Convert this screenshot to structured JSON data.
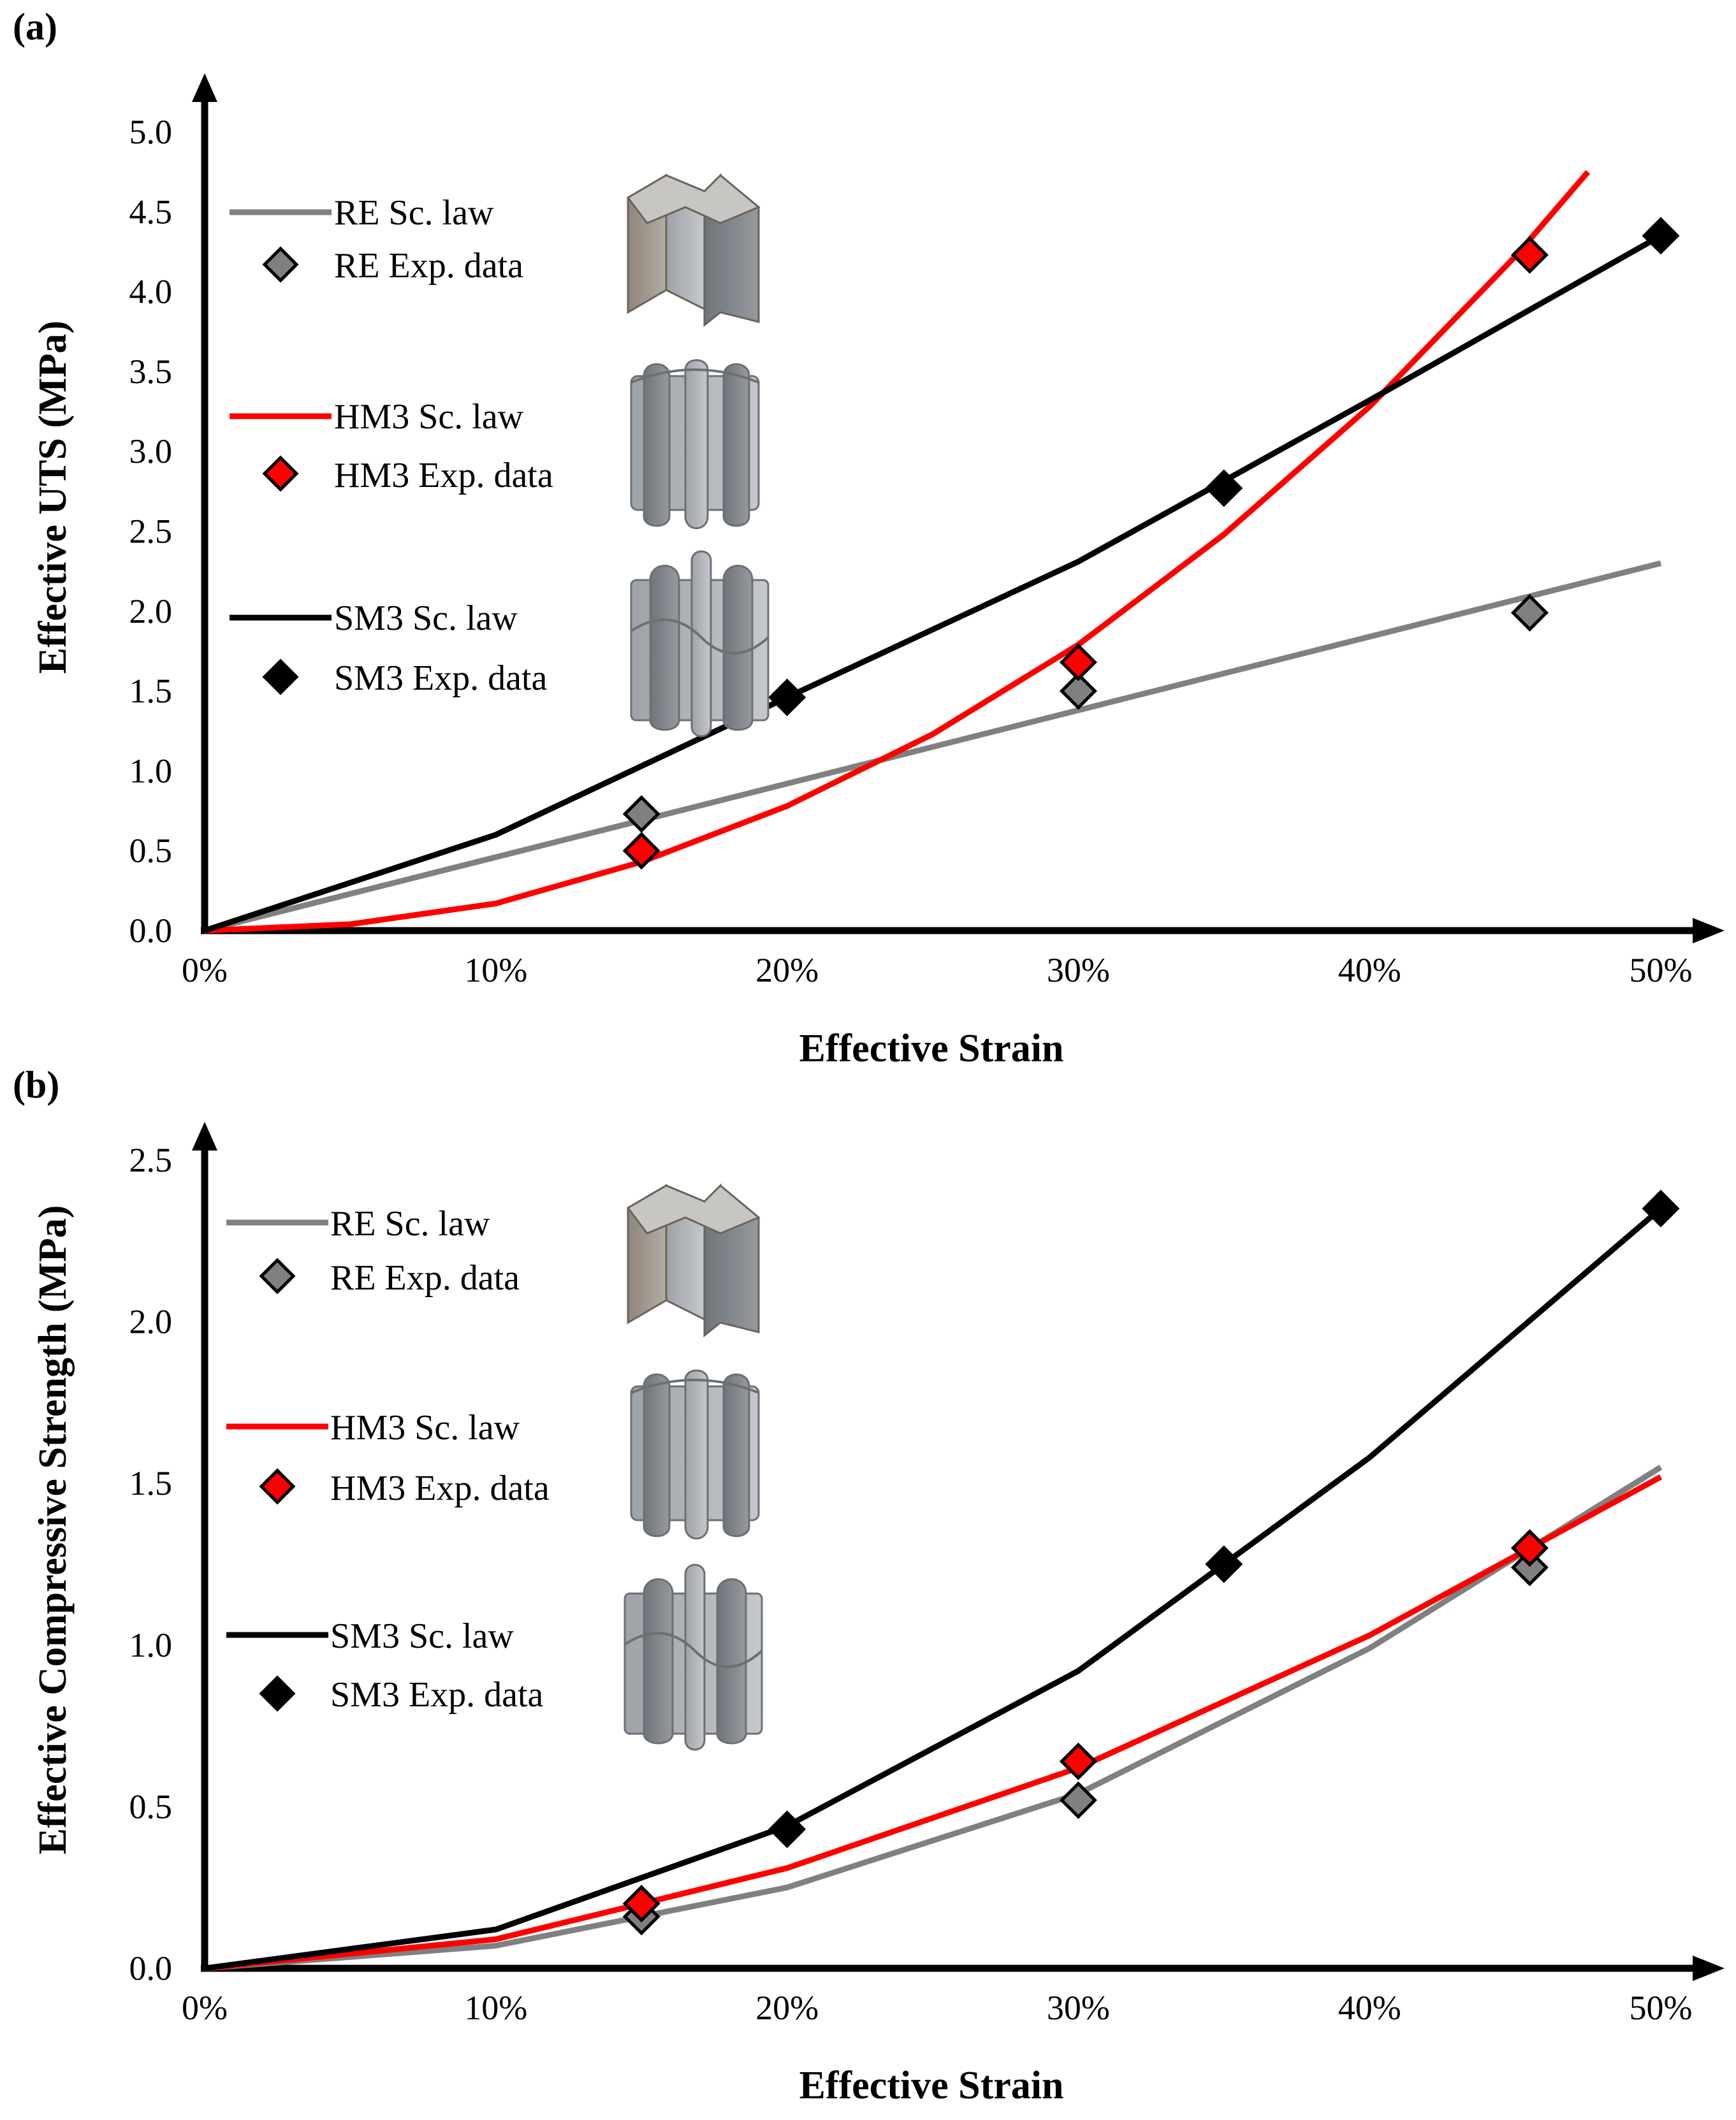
{
  "colors": {
    "RE": "#808080",
    "HM3": "#ff0000",
    "SM3": "#000000",
    "marker_RE": "#808080",
    "marker_HM3": "#ff0000",
    "marker_SM3": "#000000",
    "axis": "#000000",
    "struct_light": "#b4b8bd",
    "struct_dark": "#7f848a",
    "struct_warm": "#a39c93"
  },
  "chart_data": [
    {
      "panel_label": "(a)",
      "type": "line",
      "title": "",
      "xlabel": "Effective Strain",
      "ylabel": "Effective UTS (MPa)",
      "xlim": [
        0,
        0.5
      ],
      "ylim": [
        0,
        5.0
      ],
      "xticks": [
        0,
        0.1,
        0.2,
        0.3,
        0.4,
        0.5
      ],
      "xtick_labels": [
        "0%",
        "10%",
        "20%",
        "30%",
        "40%",
        "50%"
      ],
      "yticks": [
        0,
        0.5,
        1.0,
        1.5,
        2.0,
        2.5,
        3.0,
        3.5,
        4.0,
        4.5,
        5.0
      ],
      "ytick_labels": [
        "0.0",
        "0.5",
        "1.0",
        "1.5",
        "2.0",
        "2.5",
        "3.0",
        "3.5",
        "4.0",
        "4.5",
        "5.0"
      ],
      "legend_position": "upper-left",
      "series": [
        {
          "key": "RE",
          "name": "RE Sc. law",
          "kind": "line",
          "x": [
            0,
            0.1,
            0.2,
            0.3,
            0.4,
            0.5
          ],
          "y": [
            0,
            0.46,
            0.92,
            1.38,
            1.84,
            2.3
          ]
        },
        {
          "key": "RE",
          "name": "RE Exp. data",
          "kind": "marker",
          "x": [
            0.15,
            0.3,
            0.455
          ],
          "y": [
            0.73,
            1.5,
            1.99
          ]
        },
        {
          "key": "HM3",
          "name": "HM3 Sc. law",
          "kind": "line",
          "x": [
            0,
            0.05,
            0.1,
            0.15,
            0.2,
            0.25,
            0.3,
            0.35,
            0.4,
            0.45,
            0.475
          ],
          "y": [
            0,
            0.04,
            0.17,
            0.43,
            0.78,
            1.23,
            1.79,
            2.48,
            3.28,
            4.22,
            4.75
          ]
        },
        {
          "key": "HM3",
          "name": "HM3 Exp. data",
          "kind": "marker",
          "x": [
            0.15,
            0.3,
            0.455
          ],
          "y": [
            0.5,
            1.68,
            4.23
          ]
        },
        {
          "key": "SM3",
          "name": "SM3 Sc. law",
          "kind": "line",
          "x": [
            0,
            0.1,
            0.2,
            0.3,
            0.4,
            0.5
          ],
          "y": [
            0,
            0.6,
            1.46,
            2.31,
            3.32,
            4.35
          ]
        },
        {
          "key": "SM3",
          "name": "SM3 Exp. data",
          "kind": "marker",
          "x": [
            0.2,
            0.35,
            0.5
          ],
          "y": [
            1.46,
            2.77,
            4.35
          ]
        }
      ]
    },
    {
      "panel_label": "(b)",
      "type": "line",
      "title": "",
      "xlabel": "Effective Strain",
      "ylabel": "Effective Compressive Strength (MPa)",
      "xlim": [
        0,
        0.5
      ],
      "ylim": [
        0,
        2.5
      ],
      "xticks": [
        0,
        0.1,
        0.2,
        0.3,
        0.4,
        0.5
      ],
      "xtick_labels": [
        "0%",
        "10%",
        "20%",
        "30%",
        "40%",
        "50%"
      ],
      "yticks": [
        0,
        0.5,
        1.0,
        1.5,
        2.0,
        2.5
      ],
      "ytick_labels": [
        "0.0",
        "0.5",
        "1.0",
        "1.5",
        "2.0",
        "2.5"
      ],
      "legend_position": "upper-left",
      "series": [
        {
          "key": "RE",
          "name": "RE Sc. law",
          "kind": "line",
          "x": [
            0,
            0.1,
            0.2,
            0.3,
            0.4,
            0.5
          ],
          "y": [
            0,
            0.07,
            0.25,
            0.54,
            0.99,
            1.55
          ]
        },
        {
          "key": "RE",
          "name": "RE Exp. data",
          "kind": "marker",
          "x": [
            0.15,
            0.3,
            0.455
          ],
          "y": [
            0.16,
            0.52,
            1.24
          ]
        },
        {
          "key": "HM3",
          "name": "HM3 Sc. law",
          "kind": "line",
          "x": [
            0,
            0.1,
            0.2,
            0.3,
            0.4,
            0.5
          ],
          "y": [
            0,
            0.09,
            0.31,
            0.62,
            1.03,
            1.52
          ]
        },
        {
          "key": "HM3",
          "name": "HM3 Exp. data",
          "kind": "marker",
          "x": [
            0.15,
            0.3,
            0.455
          ],
          "y": [
            0.2,
            0.64,
            1.3
          ]
        },
        {
          "key": "SM3",
          "name": "SM3 Sc. law",
          "kind": "line",
          "x": [
            0,
            0.1,
            0.2,
            0.3,
            0.4,
            0.5
          ],
          "y": [
            0,
            0.12,
            0.44,
            0.92,
            1.58,
            2.35
          ]
        },
        {
          "key": "SM3",
          "name": "SM3 Exp. data",
          "kind": "marker",
          "x": [
            0.2,
            0.35,
            0.5
          ],
          "y": [
            0.43,
            1.25,
            2.35
          ]
        }
      ]
    }
  ]
}
